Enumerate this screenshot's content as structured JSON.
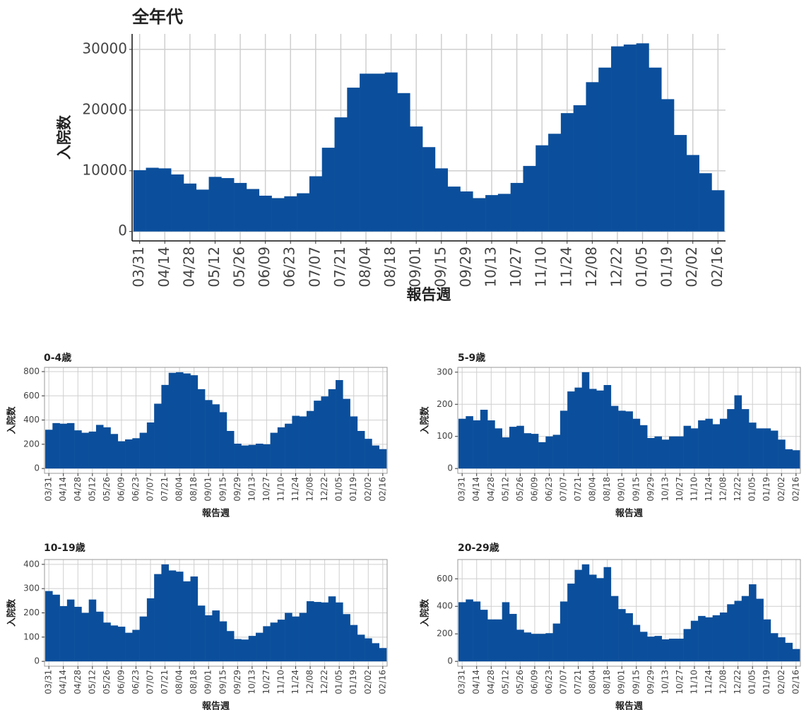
{
  "chart_data": [
    {
      "type": "bar",
      "title": "全年代",
      "x_label": "報告週",
      "y_label": "入院数",
      "categories": [
        "03/31",
        null,
        "04/14",
        null,
        "04/28",
        null,
        "05/12",
        null,
        "05/26",
        null,
        "06/09",
        null,
        "06/23",
        null,
        "07/07",
        null,
        "07/21",
        null,
        "08/04",
        null,
        "08/18",
        null,
        "09/01",
        null,
        "09/15",
        null,
        "09/29",
        null,
        "10/13",
        null,
        "10/27",
        null,
        "11/10",
        null,
        "11/24",
        null,
        "12/08",
        null,
        "12/22",
        null,
        "01/05",
        null,
        "01/19",
        null,
        "02/02",
        null,
        "02/16"
      ],
      "values": [
        10100,
        10500,
        10400,
        9400,
        7900,
        6900,
        9000,
        8800,
        8000,
        7000,
        5900,
        5500,
        5800,
        6300,
        9100,
        13800,
        18800,
        23700,
        26000,
        26000,
        26200,
        22800,
        17300,
        13900,
        10400,
        7400,
        6600,
        5500,
        6000,
        6200,
        8000,
        10800,
        14200,
        16100,
        19500,
        20800,
        24600,
        27000,
        30500,
        30800,
        31000,
        27000,
        21800,
        15900,
        12600,
        9600,
        6800
      ],
      "color": "#0b4f9c",
      "ylim": [
        -1550,
        32550
      ],
      "yticks": [
        0,
        10000,
        20000,
        30000
      ],
      "grid": true
    },
    {
      "type": "bar",
      "title": "0-4歳",
      "x_label": "報告週",
      "y_label": "入院数",
      "categories": [
        "03/31",
        null,
        "04/14",
        null,
        "04/28",
        null,
        "05/12",
        null,
        "05/26",
        null,
        "06/09",
        null,
        "06/23",
        null,
        "07/07",
        null,
        "07/21",
        null,
        "08/04",
        null,
        "08/18",
        null,
        "09/01",
        null,
        "09/15",
        null,
        "09/29",
        null,
        "10/13",
        null,
        "10/27",
        null,
        "11/10",
        null,
        "11/24",
        null,
        "12/08",
        null,
        "12/22",
        null,
        "01/05",
        null,
        "01/19",
        null,
        "02/02",
        null,
        "02/16"
      ],
      "values": [
        320,
        375,
        370,
        375,
        315,
        295,
        305,
        360,
        340,
        285,
        225,
        240,
        250,
        295,
        380,
        535,
        690,
        790,
        795,
        785,
        770,
        655,
        565,
        530,
        465,
        310,
        205,
        190,
        195,
        205,
        200,
        295,
        340,
        370,
        435,
        430,
        475,
        560,
        595,
        655,
        730,
        575,
        430,
        310,
        245,
        190,
        160
      ],
      "color": "#0b4f9c",
      "ylim": [
        -40,
        835
      ],
      "yticks": [
        0,
        200,
        400,
        600,
        800
      ],
      "grid": true
    },
    {
      "type": "bar",
      "title": "5-9歳",
      "x_label": "報告週",
      "y_label": "入院数",
      "categories": [
        "03/31",
        null,
        "04/14",
        null,
        "04/28",
        null,
        "05/12",
        null,
        "05/26",
        null,
        "06/09",
        null,
        "06/23",
        null,
        "07/07",
        null,
        "07/21",
        null,
        "08/04",
        null,
        "08/18",
        null,
        "09/01",
        null,
        "09/15",
        null,
        "09/29",
        null,
        "10/13",
        null,
        "10/27",
        null,
        "11/10",
        null,
        "11/24",
        null,
        "12/08",
        null,
        "12/22",
        null,
        "01/05",
        null,
        "01/19",
        null,
        "02/02",
        null,
        "02/16"
      ],
      "values": [
        155,
        163,
        150,
        183,
        150,
        125,
        97,
        130,
        133,
        110,
        108,
        82,
        100,
        105,
        180,
        240,
        252,
        300,
        248,
        243,
        260,
        195,
        180,
        178,
        155,
        135,
        95,
        100,
        90,
        100,
        100,
        133,
        125,
        150,
        155,
        138,
        155,
        185,
        228,
        185,
        143,
        125,
        125,
        118,
        90,
        60,
        57
      ],
      "color": "#0b4f9c",
      "ylim": [
        -15,
        315
      ],
      "yticks": [
        0,
        100,
        200,
        300
      ],
      "grid": true
    },
    {
      "type": "bar",
      "title": "10-19歳",
      "x_label": "報告週",
      "y_label": "入院数",
      "categories": [
        "03/31",
        null,
        "04/14",
        null,
        "04/28",
        null,
        "05/12",
        null,
        "05/26",
        null,
        "06/09",
        null,
        "06/23",
        null,
        "07/07",
        null,
        "07/21",
        null,
        "08/04",
        null,
        "08/18",
        null,
        "09/01",
        null,
        "09/15",
        null,
        "09/29",
        null,
        "10/13",
        null,
        "10/27",
        null,
        "11/10",
        null,
        "11/24",
        null,
        "12/08",
        null,
        "12/22",
        null,
        "01/05",
        null,
        "01/19",
        null,
        "02/02",
        null,
        "02/16"
      ],
      "values": [
        290,
        275,
        228,
        255,
        225,
        200,
        255,
        205,
        160,
        148,
        143,
        118,
        130,
        185,
        260,
        360,
        400,
        375,
        370,
        330,
        350,
        230,
        190,
        210,
        165,
        125,
        92,
        90,
        105,
        118,
        145,
        160,
        172,
        200,
        185,
        200,
        248,
        245,
        243,
        268,
        243,
        195,
        150,
        110,
        95,
        75,
        55
      ],
      "color": "#0b4f9c",
      "ylim": [
        -20,
        420
      ],
      "yticks": [
        0,
        100,
        200,
        300,
        400
      ],
      "grid": true
    },
    {
      "type": "bar",
      "title": "20-29歳",
      "x_label": "報告週",
      "y_label": "入院数",
      "categories": [
        "03/31",
        null,
        "04/14",
        null,
        "04/28",
        null,
        "05/12",
        null,
        "05/26",
        null,
        "06/09",
        null,
        "06/23",
        null,
        "07/07",
        null,
        "07/21",
        null,
        "08/04",
        null,
        "08/18",
        null,
        "09/01",
        null,
        "09/15",
        null,
        "09/29",
        null,
        "10/13",
        null,
        "10/27",
        null,
        "11/10",
        null,
        "11/24",
        null,
        "12/08",
        null,
        "12/22",
        null,
        "01/05",
        null,
        "01/19",
        null,
        "02/02",
        null,
        "02/16"
      ],
      "values": [
        430,
        450,
        435,
        375,
        305,
        305,
        430,
        345,
        230,
        210,
        200,
        200,
        205,
        275,
        435,
        565,
        665,
        705,
        630,
        605,
        685,
        475,
        380,
        350,
        265,
        215,
        180,
        185,
        160,
        165,
        165,
        235,
        295,
        330,
        320,
        335,
        355,
        415,
        440,
        475,
        560,
        455,
        305,
        205,
        175,
        135,
        90
      ],
      "color": "#0b4f9c",
      "ylim": [
        -35,
        740
      ],
      "yticks": [
        0,
        200,
        400,
        600
      ],
      "grid": true
    }
  ]
}
